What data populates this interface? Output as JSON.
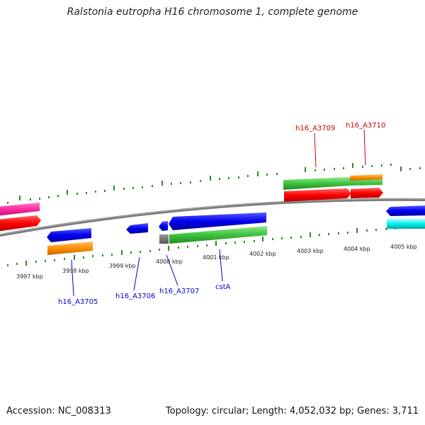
{
  "title": "Ralstonia eutropha H16 chromosome 1, complete genome",
  "footer": {
    "accession": "Accession: NC_008313",
    "summary": "Topology: circular; Length: 4,052,032 bp; Genes: 3,711"
  },
  "scale_labels": [
    "3997 kbp",
    "3998 kbp",
    "3999 kbp",
    "4000 kbp",
    "4001 kbp",
    "4002 kbp",
    "4003 kbp",
    "4004 kbp",
    "4005 kbp"
  ],
  "gene_labels": {
    "forward": [
      "h16_A3709",
      "h16_A3710"
    ],
    "reverse": [
      "h16_A3705",
      "h16_A3706",
      "h16_A3707",
      "cstA"
    ]
  },
  "colors": {
    "forward_label": "#cc0000",
    "reverse_label": "#0000cc",
    "tick": "#2a8a2a",
    "backbone": "#808080"
  }
}
